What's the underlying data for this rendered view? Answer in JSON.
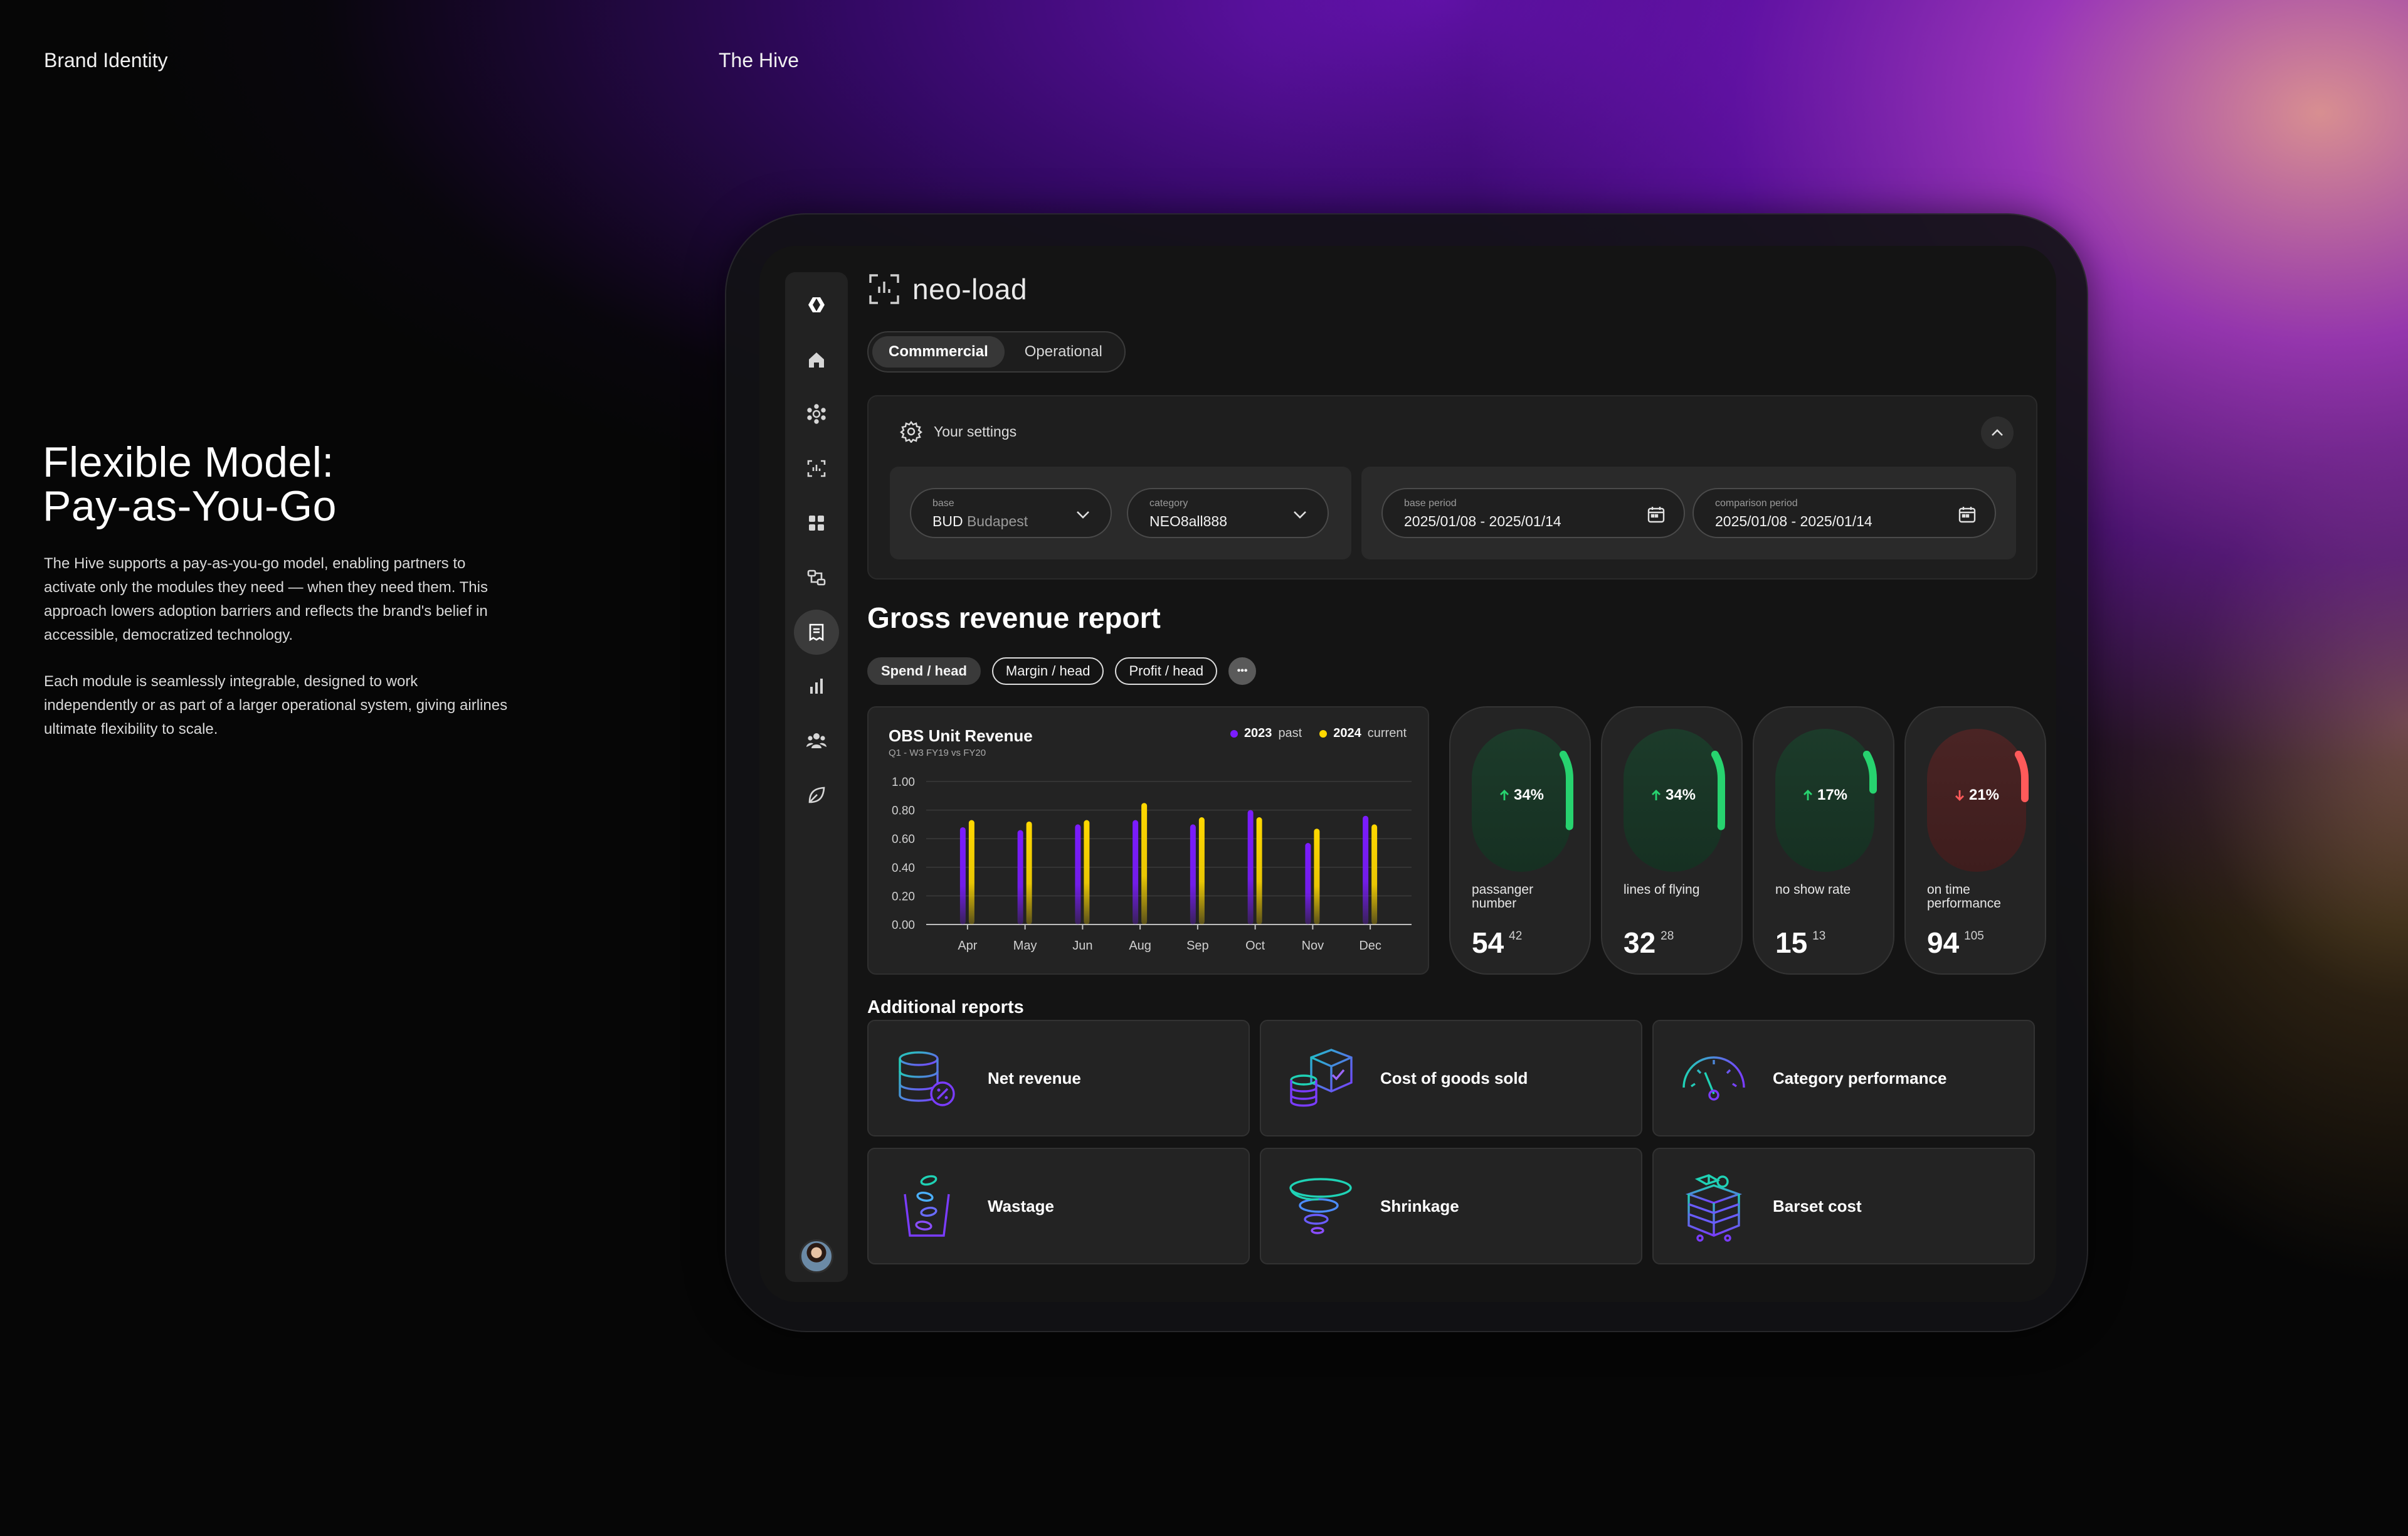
{
  "page": {
    "top_left_label": "Brand Identity",
    "top_mid_label": "The Hive",
    "headline_line1": "Flexible Model:",
    "headline_line2": "Pay-as-You-Go",
    "paragraph1": "The Hive supports a pay-as-you-go model, enabling partners to activate only the modules they need — when they need them. This approach lowers adoption barriers and reflects the brand's belief in accessible, democratized technology.",
    "paragraph2": "Each module is seamlessly integrable, designed to work independently or as part of a larger operational system, giving airlines ultimate flexibility to scale."
  },
  "app": {
    "name": "neo-load",
    "logo_icon": "scan-bars-icon",
    "sidebar": {
      "items": [
        {
          "icon": "hive-logo-icon"
        },
        {
          "icon": "home-icon"
        },
        {
          "icon": "network-icon"
        },
        {
          "icon": "scan-icon"
        },
        {
          "icon": "modules-icon"
        },
        {
          "icon": "flow-icon"
        },
        {
          "icon": "report-icon",
          "active": true
        },
        {
          "icon": "bar-chart-icon"
        },
        {
          "icon": "team-icon"
        },
        {
          "icon": "leaf-icon"
        }
      ],
      "avatar": "user-avatar"
    },
    "tabs": [
      {
        "label": "Commmercial",
        "active": true
      },
      {
        "label": "Operational",
        "active": false
      }
    ],
    "settings": {
      "title": "Your settings",
      "base_label": "base",
      "base_value": "BUD",
      "base_value_muted": "Budapest",
      "category_label": "category",
      "category_value": "NEO8all888",
      "base_period_label": "base period",
      "base_period_value": "2025/01/08 - 2025/01/14",
      "comparison_period_label": "comparison period",
      "comparison_period_value": "2025/01/08 - 2025/01/14"
    },
    "report": {
      "title": "Gross revenue report",
      "chips": [
        {
          "label": "Spend / head",
          "active": true
        },
        {
          "label": "Margin / head",
          "active": false
        },
        {
          "label": "Profit / head",
          "active": false
        }
      ],
      "more_label": "•••"
    },
    "kpis": [
      {
        "percent": "34%",
        "direction": "up",
        "label": "passanger number",
        "value": "54",
        "sup": "42",
        "fraction": 0.34,
        "color": "#27d36f"
      },
      {
        "percent": "34%",
        "direction": "up",
        "label": "lines of flying",
        "value": "32",
        "sup": "28",
        "fraction": 0.34,
        "color": "#27d36f"
      },
      {
        "percent": "17%",
        "direction": "up",
        "label": "no show rate",
        "value": "15",
        "sup": "13",
        "fraction": 0.17,
        "color": "#27d36f"
      },
      {
        "percent": "21%",
        "direction": "down",
        "label": "on time performance",
        "value": "94",
        "sup": "105",
        "fraction": 0.21,
        "color": "#ff5a5a"
      }
    ],
    "additional": {
      "title": "Additional reports",
      "items": [
        {
          "label": "Net revenue",
          "icon": "database-discount-icon"
        },
        {
          "label": "Cost of goods sold",
          "icon": "box-coins-icon"
        },
        {
          "label": "Category performance",
          "icon": "gauge-icon"
        },
        {
          "label": "Wastage",
          "icon": "waste-bin-icon"
        },
        {
          "label": "Shrinkage",
          "icon": "tornado-icon"
        },
        {
          "label": "Barset cost",
          "icon": "stacked-cart-icon"
        }
      ]
    }
  },
  "chart_data": {
    "type": "bar",
    "title": "OBS Unit Revenue",
    "subtitle": "Q1 - W3 FY19 vs FY20",
    "categories": [
      "Apr",
      "May",
      "Jun",
      "Aug",
      "Sep",
      "Oct",
      "Nov",
      "Dec"
    ],
    "series": [
      {
        "name": "2023",
        "name_suffix": "past",
        "color": "#7b1cff",
        "values": [
          0.68,
          0.66,
          0.7,
          0.73,
          0.7,
          0.8,
          0.57,
          0.76
        ]
      },
      {
        "name": "2024",
        "name_suffix": "current",
        "color": "#ffd800",
        "values": [
          0.73,
          0.72,
          0.73,
          0.85,
          0.75,
          0.75,
          0.67,
          0.7
        ]
      }
    ],
    "yticks": [
      "1.00",
      "0.80",
      "0.60",
      "0.40",
      "0.20",
      "0.00"
    ],
    "ylim": [
      0,
      1
    ],
    "grid": true,
    "legend": "top-right"
  }
}
